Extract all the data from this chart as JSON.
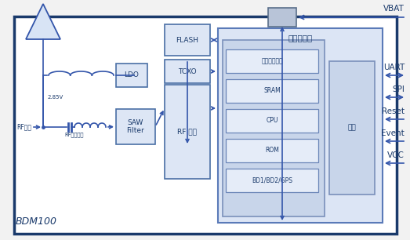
{
  "arrow_color": "#3355aa",
  "text_color": "#1a3a6b",
  "border_color": "#1a3a6b",
  "box_edge": "#4a6fa5",
  "box_fill": "#dde6f5",
  "bb_fill": "#dce5f5",
  "bb_edge": "#5a7ab8",
  "inner_fill": "#c8d5ea",
  "inner_edge": "#7a90bb",
  "block_fill": "#e5ecf8",
  "block_edge": "#6a85b8",
  "title": "BDM100",
  "baseband_title": "基带处理器",
  "interface_label": "接口",
  "saw_label": "SAW\nFilter",
  "rf_label": "RF 前端",
  "tcxo_label": "TCXO",
  "flash_label": "FLASH",
  "ldo_label": "LDO",
  "inner_blocks": [
    {
      "label": "数字中频滤波"
    },
    {
      "label": "SRAM"
    },
    {
      "label": "CPU"
    },
    {
      "label": "ROM"
    },
    {
      "label": "BD1/BD2/GPS"
    }
  ],
  "right_signals": [
    {
      "label": "UART",
      "dir": "both"
    },
    {
      "label": "SPI",
      "dir": "both"
    },
    {
      "label": "Reset",
      "dir": "in"
    },
    {
      "label": "Event",
      "dir": "in"
    },
    {
      "label": "VCC",
      "dir": "in"
    }
  ],
  "vbat_label": "VBAT",
  "rf_input_label": "RF输入",
  "rf_match_label": "RF输入匹配",
  "voltage_label": "2.85V"
}
